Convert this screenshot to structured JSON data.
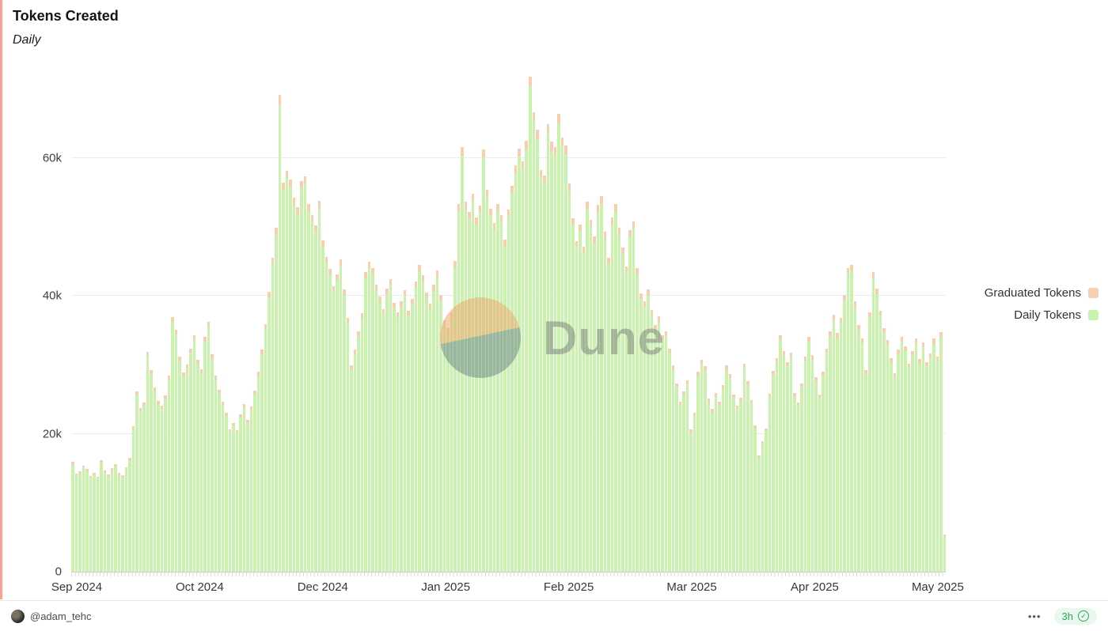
{
  "page": {
    "title": "Tokens Created",
    "subtitle": "Daily"
  },
  "legend": [
    {
      "label": "Graduated Tokens",
      "color": "#f8cfae"
    },
    {
      "label": "Daily Tokens",
      "color": "#c9f2ac"
    }
  ],
  "watermark": {
    "text": "Dune"
  },
  "footer": {
    "author": "@adam_tehc",
    "menu": "•••",
    "updated": "3h",
    "check_icon": "✓"
  },
  "chart_data": {
    "type": "bar",
    "stacked": true,
    "title": "Tokens Created",
    "subtitle": "Daily",
    "grid": "horizontal",
    "legend_position": "right",
    "values_unit": "thousands of tokens per day",
    "ylim": [
      0,
      74
    ],
    "y_ticks": [
      "0",
      "20k",
      "40k",
      "60k"
    ],
    "y_tick_values": [
      0,
      20,
      40,
      60
    ],
    "x_axis_labels": [
      "Sep 2024",
      "Oct 2024",
      "Dec 2024",
      "Jan 2025",
      "Feb 2025",
      "Mar 2025",
      "Apr 2025",
      "May 2025"
    ],
    "series": [
      {
        "name": "Daily Tokens",
        "color": "#c9f2ac",
        "values": [
          15.6,
          13.9,
          14.3,
          15.1,
          14.6,
          13.6,
          14.1,
          13.5,
          15.9,
          14.4,
          13.8,
          14.7,
          15.3,
          14.0,
          13.7,
          14.9,
          16.2,
          20.7,
          25.7,
          23.3,
          24.1,
          31.3,
          28.7,
          26.2,
          24.3,
          23.6,
          25.1,
          27.9,
          36.2,
          34.4,
          30.6,
          28.3,
          29.5,
          31.8,
          33.6,
          30.2,
          28.8,
          33.4,
          35.6,
          30.9,
          27.8,
          25.9,
          24.2,
          22.6,
          20.3,
          21.2,
          20.1,
          22.4,
          23.8,
          21.6,
          23.5,
          25.8,
          28.4,
          31.6,
          35.2,
          39.8,
          44.6,
          48.9,
          67.8,
          55.4,
          57.1,
          55.8,
          53.2,
          51.9,
          55.6,
          56.3,
          52.4,
          50.8,
          49.3,
          52.7,
          47.2,
          44.8,
          43.1,
          40.6,
          42.3,
          44.4,
          40.2,
          36.1,
          29.3,
          31.6,
          34.2,
          36.8,
          42.6,
          44.1,
          43.2,
          40.8,
          39.1,
          37.4,
          40.3,
          41.7,
          38.2,
          36.9,
          38.4,
          40.1,
          37.2,
          38.8,
          41.3,
          43.6,
          42.2,
          39.7,
          38.1,
          40.9,
          42.8,
          39.4,
          35.8,
          34.6,
          36.9,
          44.2,
          52.3,
          60.4,
          52.6,
          51.2,
          53.8,
          50.4,
          52.1,
          60.1,
          54.3,
          51.7,
          49.6,
          52.4,
          50.8,
          47.3,
          51.6,
          54.9,
          57.8,
          60.2,
          58.4,
          61.3,
          70.4,
          65.4,
          62.8,
          57.2,
          56.4,
          63.6,
          61.2,
          60.4,
          65.1,
          61.8,
          60.6,
          55.2,
          50.3,
          47.1,
          49.4,
          46.2,
          52.6,
          50.1,
          47.6,
          52.2,
          53.4,
          48.3,
          44.6,
          50.4,
          52.3,
          48.9,
          46.1,
          43.4,
          48.6,
          49.8,
          43.2,
          39.6,
          38.4,
          40.2,
          37.3,
          35.1,
          36.4,
          33.6,
          34.2,
          31.8,
          29.3,
          26.8,
          24.2,
          25.7,
          27.3,
          20.2,
          22.6,
          28.4,
          30.1,
          29.2,
          24.6,
          23.1,
          25.4,
          24.2,
          26.6,
          29.4,
          28.1,
          25.2,
          23.6,
          24.8,
          29.6,
          27.1,
          24.4,
          20.8,
          16.6,
          18.5,
          20.4,
          25.3,
          28.6,
          30.4,
          33.6,
          31.4,
          29.8,
          31.2,
          25.4,
          24.1,
          26.8,
          30.6,
          33.4,
          30.8,
          27.6,
          25.2,
          28.4,
          31.8,
          34.2,
          36.6,
          33.9,
          36.1,
          39.4,
          43.2,
          43.6,
          38.4,
          35.1,
          33.2,
          28.7,
          36.9,
          42.6,
          40.3,
          37.2,
          34.6,
          32.9,
          30.4,
          28.2,
          31.6,
          33.4,
          32.1,
          29.6,
          31.4,
          33.2,
          30.3,
          32.6,
          29.8,
          31.1,
          33.1,
          30.6,
          34.1,
          5.2
        ]
      },
      {
        "name": "Graduated Tokens",
        "color": "#f8cfae",
        "values": [
          0.3,
          0.3,
          0.3,
          0.3,
          0.3,
          0.3,
          0.3,
          0.3,
          0.3,
          0.3,
          0.3,
          0.3,
          0.3,
          0.3,
          0.3,
          0.3,
          0.3,
          0.4,
          0.5,
          0.5,
          0.5,
          0.6,
          0.6,
          0.5,
          0.5,
          0.5,
          0.5,
          0.6,
          0.7,
          0.7,
          0.6,
          0.6,
          0.6,
          0.6,
          0.7,
          0.6,
          0.6,
          0.7,
          0.7,
          0.6,
          0.6,
          0.5,
          0.5,
          0.5,
          0.4,
          0.4,
          0.4,
          0.4,
          0.5,
          0.4,
          0.5,
          0.5,
          0.6,
          0.6,
          0.7,
          0.8,
          0.9,
          1.0,
          1.4,
          1.1,
          1.1,
          1.1,
          1.1,
          1.0,
          1.1,
          1.1,
          1.0,
          1.0,
          1.0,
          1.1,
          0.9,
          0.9,
          0.9,
          0.8,
          0.8,
          0.9,
          0.8,
          0.7,
          0.6,
          0.6,
          0.7,
          0.7,
          0.9,
          0.9,
          0.9,
          0.8,
          0.8,
          0.7,
          0.8,
          0.8,
          0.8,
          0.7,
          0.8,
          0.8,
          0.7,
          0.8,
          0.8,
          0.9,
          0.8,
          0.8,
          0.8,
          0.8,
          0.9,
          0.8,
          0.7,
          0.7,
          0.7,
          0.9,
          1.0,
          1.2,
          1.1,
          1.0,
          1.1,
          1.0,
          1.0,
          1.2,
          1.1,
          1.0,
          1.0,
          1.0,
          1.0,
          0.9,
          1.0,
          1.1,
          1.2,
          1.2,
          1.2,
          1.2,
          1.4,
          1.3,
          1.3,
          1.1,
          1.1,
          1.3,
          1.2,
          1.2,
          1.3,
          1.2,
          1.2,
          1.1,
          1.0,
          0.9,
          1.0,
          0.9,
          1.1,
          1.0,
          1.0,
          1.0,
          1.1,
          1.0,
          0.9,
          1.0,
          1.0,
          1.0,
          0.9,
          0.9,
          1.0,
          1.0,
          0.9,
          0.8,
          0.8,
          0.8,
          0.7,
          0.7,
          0.7,
          0.7,
          0.7,
          0.6,
          0.6,
          0.5,
          0.5,
          0.5,
          0.5,
          0.4,
          0.5,
          0.6,
          0.6,
          0.6,
          0.5,
          0.5,
          0.5,
          0.5,
          0.5,
          0.6,
          0.6,
          0.5,
          0.5,
          0.5,
          0.6,
          0.5,
          0.5,
          0.4,
          0.3,
          0.4,
          0.4,
          0.5,
          0.6,
          0.6,
          0.7,
          0.6,
          0.6,
          0.6,
          0.5,
          0.5,
          0.5,
          0.6,
          0.7,
          0.6,
          0.6,
          0.5,
          0.6,
          0.6,
          0.7,
          0.7,
          0.7,
          0.7,
          0.8,
          0.9,
          0.9,
          0.8,
          0.7,
          0.7,
          0.6,
          0.7,
          0.9,
          0.8,
          0.7,
          0.7,
          0.7,
          0.6,
          0.6,
          0.6,
          0.7,
          0.6,
          0.6,
          0.6,
          0.7,
          0.6,
          0.7,
          0.6,
          0.6,
          0.7,
          0.6,
          0.7,
          0.2
        ]
      }
    ]
  }
}
